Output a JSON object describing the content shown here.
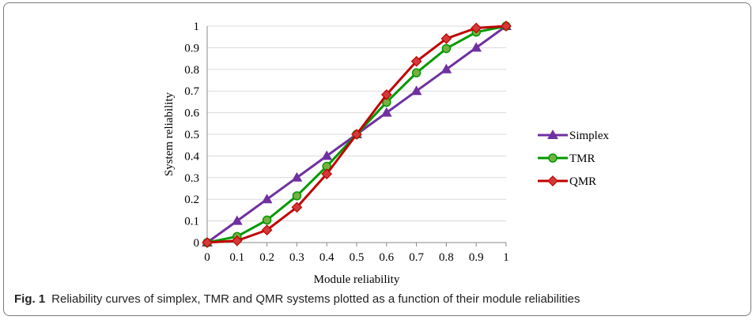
{
  "figure": {
    "label": "Fig. 1",
    "caption": "Reliability curves of simplex, TMR and QMR systems plotted as a function of their module reliabilities"
  },
  "chart_data": {
    "type": "line",
    "xlabel": "Module reliability",
    "ylabel": "System reliability",
    "x": [
      0,
      0.1,
      0.2,
      0.3,
      0.4,
      0.5,
      0.6,
      0.7,
      0.8,
      0.9,
      1
    ],
    "x_tick_labels": [
      "0",
      "0.1",
      "0.2",
      "0.3",
      "0.4",
      "0.5",
      "0.6",
      "0.7",
      "0.8",
      "0.9",
      "1"
    ],
    "y_ticks": [
      0,
      0.1,
      0.2,
      0.3,
      0.4,
      0.5,
      0.6,
      0.7,
      0.8,
      0.9,
      1
    ],
    "y_tick_labels": [
      "0",
      "0.1",
      "0.2",
      "0.3",
      "0.4",
      "0.5",
      "0.6",
      "0.7",
      "0.8",
      "0.9",
      "1"
    ],
    "ylim": [
      0,
      1
    ],
    "grid": "horizontal",
    "legend_position": "right",
    "series": [
      {
        "name": "Simplex",
        "color": "#7030a0",
        "marker": "triangle",
        "values": [
          0,
          0.1,
          0.2,
          0.3,
          0.4,
          0.5,
          0.6,
          0.7,
          0.8,
          0.9,
          1
        ]
      },
      {
        "name": "TMR",
        "color": "#009900",
        "marker": "circle",
        "values": [
          0,
          0.028,
          0.104,
          0.216,
          0.352,
          0.5,
          0.648,
          0.784,
          0.896,
          0.972,
          1
        ]
      },
      {
        "name": "QMR",
        "color": "#c00000",
        "marker": "diamond",
        "values": [
          0,
          0.0086,
          0.058,
          0.163,
          0.317,
          0.5,
          0.683,
          0.837,
          0.942,
          0.991,
          1
        ]
      }
    ]
  }
}
